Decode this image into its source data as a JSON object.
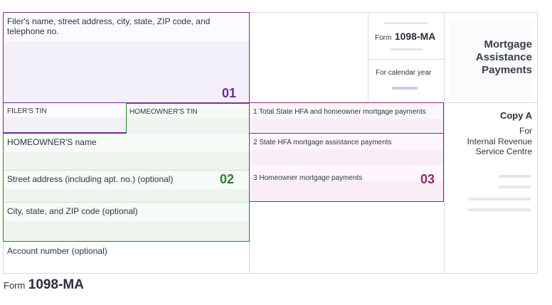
{
  "filer": {
    "address_label": "Filer's name, street address, city, state, ZIP code, and telephone no.",
    "marker": "01",
    "tin_label": "FILER'S TIN"
  },
  "homeowner": {
    "tin_label": "HOMEOWNER'S TIN",
    "name_label": "HOMEOWNER'S name",
    "street_label": "Street address (including apt. no.) (optional)",
    "city_label": "City, state, and ZIP code (optional)",
    "account_label": "Account number (optional)",
    "marker": "02"
  },
  "payments": {
    "box1_label": "1 Total State HFA and homeowner mortgage payments",
    "box2_label": "2 State HFA mortgage assistance payments",
    "box3_label": "3 Homeowner mortgage payments",
    "marker": "03"
  },
  "form_header": {
    "form_prefix": "Form",
    "form_number": "1098-MA",
    "calendar_label": "For calendar year",
    "title": "Mortgage Assistance Payments",
    "copy_label": "Copy A",
    "for_label": "For",
    "irs_label": "Internal Revenue Service Centre"
  },
  "footer": {
    "form_prefix": "Form",
    "form_number": "1098-MA"
  },
  "colors": {
    "purple": "#6a2c8a",
    "green": "#2e7d32",
    "magenta": "#8e2c6e"
  }
}
